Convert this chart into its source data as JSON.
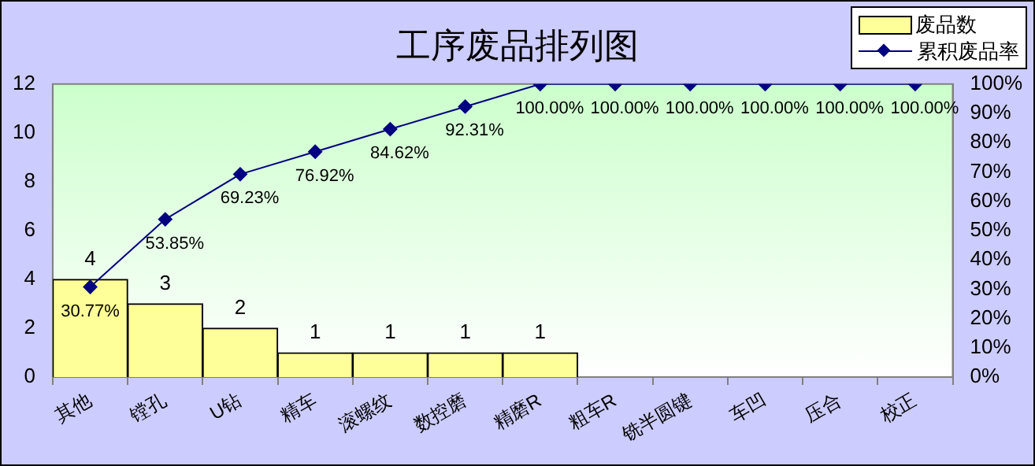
{
  "chart_data": {
    "type": "bar",
    "title": "工序废品排列图",
    "categories": [
      "其他",
      "镗孔",
      "U钻",
      "精车",
      "滚螺纹",
      "数控磨",
      "精磨R",
      "粗车R",
      "铣半圆键",
      "车凹",
      "压合",
      "校正"
    ],
    "series": [
      {
        "name": "废品数",
        "color": "#ffff99",
        "values": [
          4,
          3,
          2,
          1,
          1,
          1,
          1,
          0,
          0,
          0,
          0,
          0
        ],
        "value_labels": [
          "4",
          "3",
          "2",
          "1",
          "1",
          "1",
          "1",
          null,
          null,
          null,
          null,
          null
        ]
      },
      {
        "name": "累积废品率",
        "type": "line",
        "axis": "y2",
        "color": "#000080",
        "values": [
          30.77,
          53.85,
          69.23,
          76.92,
          84.62,
          92.31,
          100,
          100,
          100,
          100,
          100,
          100
        ],
        "value_labels": [
          "30.77%",
          "53.85%",
          "69.23%",
          "76.92%",
          "84.62%",
          "92.31%",
          "100.00%",
          "100.00%",
          "100.00%",
          "100.00%",
          "100.00%",
          "100.00%"
        ]
      }
    ],
    "ylim": [
      0,
      12
    ],
    "yticks": [
      0,
      2,
      4,
      6,
      8,
      10,
      12
    ],
    "y2lim": [
      0,
      100
    ],
    "y2ticks": [
      {
        "value": 0,
        "label": "0%"
      },
      {
        "value": 10,
        "label": "10%"
      },
      {
        "value": 20,
        "label": "20%"
      },
      {
        "value": 30,
        "label": "30%"
      },
      {
        "value": 40,
        "label": "40%"
      },
      {
        "value": 50,
        "label": "50%"
      },
      {
        "value": 60,
        "label": "60%"
      },
      {
        "value": 70,
        "label": "70%"
      },
      {
        "value": 80,
        "label": "80%"
      },
      {
        "value": 90,
        "label": "90%"
      },
      {
        "value": 100,
        "label": "100%"
      }
    ],
    "grid": false,
    "legend": "top right",
    "marker": "diamond",
    "line_style": "solid"
  }
}
